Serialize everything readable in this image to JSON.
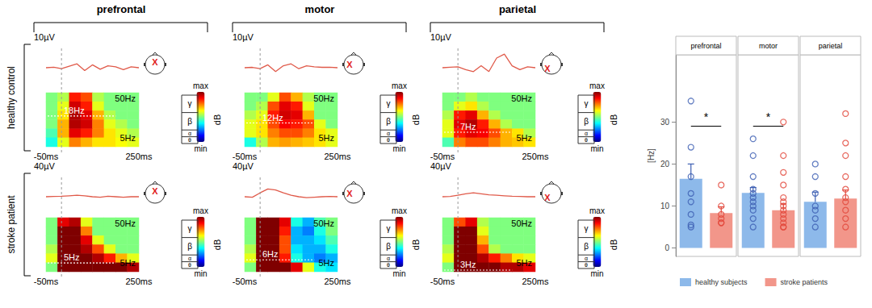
{
  "figure": {
    "regions": [
      "prefrontal",
      "motor",
      "parietal"
    ],
    "rows": [
      {
        "label": "healthy control",
        "scale_label": "10µV",
        "ylim": [
          -10,
          10
        ]
      },
      {
        "label": "stroke patient",
        "scale_label": "40µV",
        "ylim": [
          -40,
          40
        ]
      }
    ],
    "times": [
      -50,
      -25,
      0,
      25,
      50,
      75,
      100,
      125,
      150,
      175,
      200,
      225,
      250
    ],
    "time_ticks": [
      {
        "value": -50,
        "label": "-50ms"
      },
      {
        "value": 250,
        "label": "250ms"
      }
    ],
    "event_time": 0,
    "freq_range": [
      3,
      70
    ],
    "freq_ticks": [
      {
        "value": 50,
        "label": "50Hz"
      },
      {
        "value": 5,
        "label": "5Hz"
      }
    ],
    "bands": [
      "γ",
      "β",
      "α",
      "θ"
    ],
    "electrode_marker": "X",
    "colorbar": {
      "range": [
        0,
        1
      ],
      "ticks": [
        {
          "value": 0,
          "label": "min"
        },
        {
          "value": 1,
          "label": "max"
        }
      ],
      "title": "dB"
    },
    "panels": [
      {
        "row": 0,
        "region": 0,
        "peak": {
          "value": 18,
          "label": "18Hz"
        },
        "trace": [
          0,
          0.3,
          -0.5,
          0.8,
          2,
          -1.5,
          1.5,
          -0.8,
          1,
          0.5,
          -1,
          0.5,
          0
        ],
        "power": [
          [
            0.5,
            0.55,
            0.85,
            0.8,
            0.55,
            0.5,
            0.5,
            0.5
          ],
          [
            0.5,
            0.6,
            0.92,
            0.85,
            0.6,
            0.5,
            0.5,
            0.5
          ],
          [
            0.5,
            0.65,
            0.95,
            0.9,
            0.7,
            0.55,
            0.5,
            0.5
          ],
          [
            0.5,
            0.7,
            0.95,
            0.92,
            0.75,
            0.6,
            0.55,
            0.5
          ],
          [
            0.45,
            0.7,
            0.9,
            0.85,
            0.75,
            0.65,
            0.6,
            0.55
          ],
          [
            0.4,
            0.6,
            0.75,
            0.7,
            0.65,
            0.65,
            0.62,
            0.6
          ]
        ]
      },
      {
        "row": 0,
        "region": 1,
        "peak": {
          "value": 12,
          "label": "12Hz"
        },
        "trace": [
          0,
          0.2,
          -0.5,
          1.5,
          -2,
          1,
          2,
          -0.5,
          1,
          0.5,
          0.2,
          0.3,
          0
        ],
        "power": [
          [
            0.5,
            0.5,
            0.6,
            0.8,
            0.7,
            0.55,
            0.5,
            0.5
          ],
          [
            0.5,
            0.55,
            0.8,
            0.9,
            0.85,
            0.6,
            0.5,
            0.5
          ],
          [
            0.55,
            0.6,
            0.85,
            0.92,
            0.9,
            0.7,
            0.5,
            0.5
          ],
          [
            0.6,
            0.65,
            0.8,
            0.88,
            0.85,
            0.8,
            0.6,
            0.5
          ],
          [
            0.6,
            0.65,
            0.75,
            0.8,
            0.8,
            0.75,
            0.65,
            0.6
          ],
          [
            0.4,
            0.55,
            0.7,
            0.72,
            0.7,
            0.68,
            0.65,
            0.6
          ]
        ]
      },
      {
        "row": 0,
        "region": 2,
        "peak": {
          "value": 7,
          "label": "7Hz"
        },
        "trace": [
          0,
          0.3,
          0.5,
          -1,
          -2,
          1,
          -2,
          5,
          7,
          1,
          -1,
          0.5,
          0
        ],
        "power": [
          [
            0.5,
            0.5,
            0.55,
            0.5,
            0.5,
            0.5,
            0.5,
            0.5
          ],
          [
            0.5,
            0.6,
            0.65,
            0.55,
            0.5,
            0.5,
            0.5,
            0.5
          ],
          [
            0.55,
            0.85,
            0.9,
            0.7,
            0.55,
            0.5,
            0.5,
            0.5
          ],
          [
            0.6,
            0.9,
            0.95,
            0.85,
            0.7,
            0.55,
            0.5,
            0.5
          ],
          [
            0.6,
            0.85,
            0.9,
            0.88,
            0.8,
            0.7,
            0.65,
            0.55
          ],
          [
            0.45,
            0.75,
            0.8,
            0.8,
            0.75,
            0.7,
            0.68,
            0.65
          ]
        ]
      },
      {
        "row": 1,
        "region": 0,
        "peak": {
          "value": 5,
          "label": "5Hz"
        },
        "trace": [
          0,
          0.5,
          1,
          2,
          3,
          2,
          0,
          -1,
          1,
          0,
          -1,
          0,
          0
        ],
        "power": [
          [
            0.5,
            0.9,
            0.95,
            0.6,
            0.5,
            0.5,
            0.5,
            0.5
          ],
          [
            0.5,
            1,
            1,
            0.75,
            0.5,
            0.5,
            0.5,
            0.5
          ],
          [
            0.5,
            1,
            1,
            0.9,
            0.6,
            0.5,
            0.5,
            0.5
          ],
          [
            0.55,
            1,
            1,
            0.95,
            0.8,
            0.6,
            0.5,
            0.5
          ],
          [
            0.6,
            1,
            1,
            1,
            0.95,
            0.85,
            0.7,
            0.6
          ],
          [
            0.5,
            1,
            1,
            1,
            1,
            1,
            1,
            0.95
          ]
        ]
      },
      {
        "row": 1,
        "region": 1,
        "peak": {
          "value": 6,
          "label": "6Hz"
        },
        "trace": [
          0,
          -1,
          8,
          16,
          14,
          8,
          3,
          0,
          -2,
          -1,
          0,
          0.5,
          0
        ],
        "power": [
          [
            0.5,
            1,
            1,
            0.9,
            0.4,
            0.3,
            0.45,
            0.5
          ],
          [
            0.5,
            1,
            1,
            0.85,
            0.3,
            0.25,
            0.4,
            0.5
          ],
          [
            0.5,
            1,
            1,
            0.8,
            0.3,
            0.3,
            0.35,
            0.45
          ],
          [
            0.55,
            1,
            1,
            0.8,
            0.35,
            0.3,
            0.3,
            0.4
          ],
          [
            0.6,
            1,
            1,
            0.85,
            0.4,
            0.3,
            0.25,
            0.3
          ],
          [
            0.5,
            1,
            1,
            1,
            0.9,
            0.6,
            0.4,
            0.35
          ]
        ]
      },
      {
        "row": 1,
        "region": 2,
        "peak": {
          "value": 3,
          "label": "3Hz"
        },
        "trace": [
          0,
          0.5,
          3,
          6,
          8,
          6,
          4,
          3,
          2,
          1,
          0.5,
          0,
          0
        ],
        "power": [
          [
            0.5,
            0.8,
            0.9,
            0.55,
            0.5,
            0.5,
            0.5,
            0.5
          ],
          [
            0.5,
            1,
            1,
            0.6,
            0.5,
            0.5,
            0.5,
            0.5
          ],
          [
            0.5,
            1,
            1,
            0.7,
            0.5,
            0.5,
            0.5,
            0.5
          ],
          [
            0.55,
            1,
            1,
            0.8,
            0.55,
            0.5,
            0.5,
            0.5
          ],
          [
            0.6,
            1,
            1,
            0.95,
            0.85,
            0.75,
            0.65,
            0.6
          ],
          [
            0.5,
            1,
            1,
            1,
            1,
            0.95,
            0.95,
            0.9
          ]
        ]
      }
    ]
  },
  "chart_data": {
    "type": "bar",
    "categories": [
      "prefrontal",
      "motor",
      "parietal"
    ],
    "ylabel": "[Hz]",
    "ylim": [
      -2,
      46
    ],
    "yticks": [
      0,
      10,
      20,
      30
    ],
    "tick_labels": "y",
    "legend": "bottom",
    "grid": false,
    "series": [
      {
        "name": "healthy subjects",
        "color": "#8db9ea",
        "marker": "circle",
        "values": [
          16.5,
          13.1,
          11.0
        ],
        "errors": [
          3.5,
          1.3,
          2.3
        ],
        "points": [
          [
            35,
            24,
            17,
            13,
            11,
            8,
            5.5,
            5
          ],
          [
            26,
            22,
            17,
            14,
            13,
            12,
            11,
            10,
            9,
            7,
            5
          ],
          [
            20,
            17,
            13,
            10,
            9,
            7,
            5
          ]
        ]
      },
      {
        "name": "stroke patients",
        "color": "#f2968a",
        "marker": "circle",
        "values": [
          8.3,
          9.0,
          11.8
        ],
        "errors": [
          1.5,
          1.5,
          2.0
        ],
        "points": [
          [
            15,
            10,
            8,
            7,
            6,
            6
          ],
          [
            30,
            22,
            18,
            15,
            12,
            11,
            10,
            9,
            8,
            7,
            6,
            5,
            5
          ],
          [
            32,
            25,
            22,
            17,
            14,
            12,
            11,
            9,
            7,
            5
          ]
        ]
      }
    ],
    "significance": [
      {
        "category": "prefrontal",
        "label": "*",
        "y": 29
      },
      {
        "category": "motor",
        "label": "*",
        "y": 29
      }
    ]
  }
}
